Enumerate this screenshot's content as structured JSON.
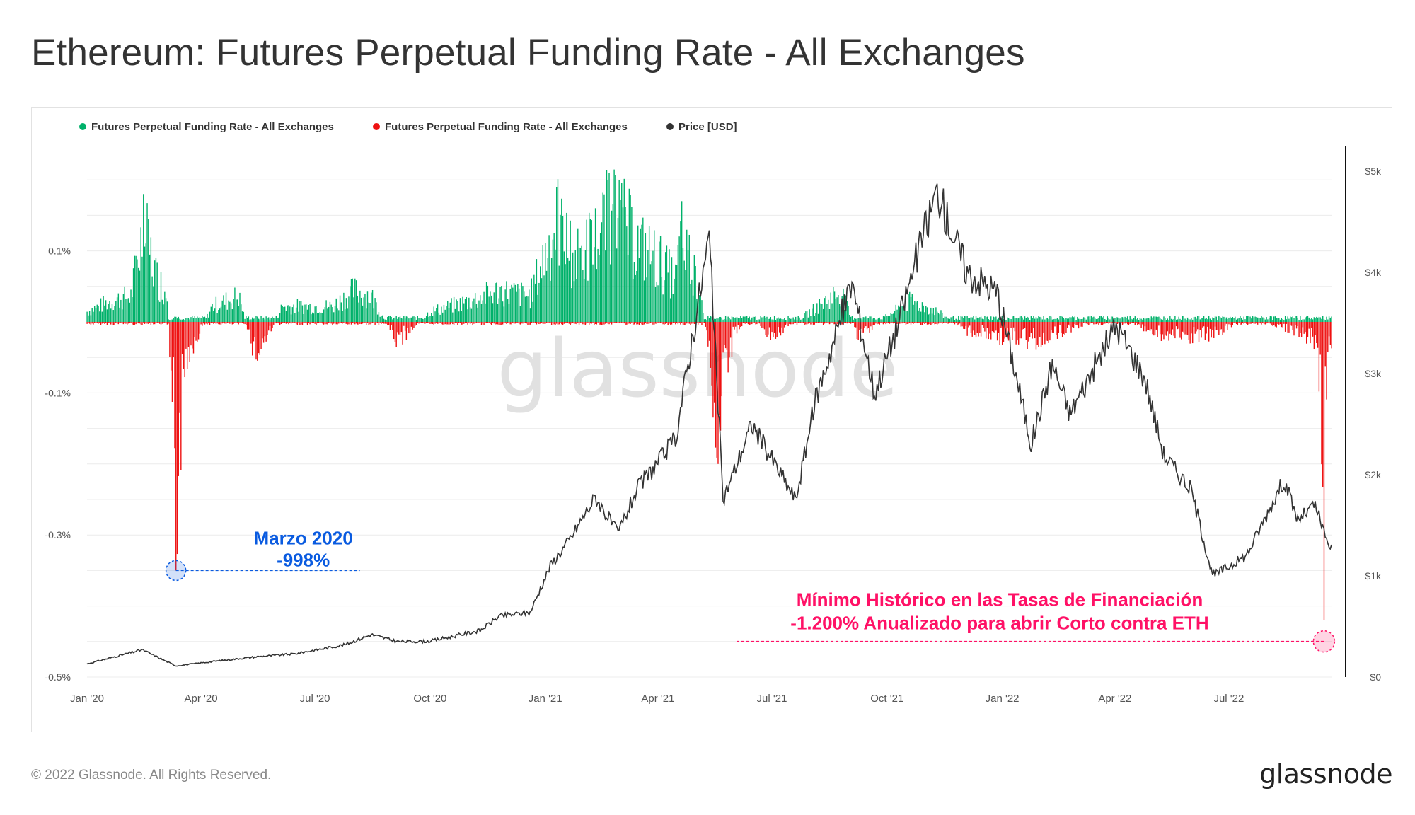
{
  "title": "Ethereum: Futures Perpetual Funding Rate - All Exchanges",
  "footer": {
    "copyright": "© 2022 Glassnode. All Rights Reserved.",
    "logo_text": "glassnode"
  },
  "watermark": "glassnode",
  "colors": {
    "positive": "#00b16a",
    "negative": "#ee1111",
    "price": "#333333",
    "blue_annotation": "#0a5be0",
    "pink_annotation": "#ff1166",
    "grid": "#ececec"
  },
  "chart_data": {
    "type": "bar+line",
    "x_ticks": [
      "Jan '20",
      "Apr '20",
      "Jul '20",
      "Oct '20",
      "Jan '21",
      "Apr '21",
      "Jul '21",
      "Oct '21",
      "Jan '22",
      "Apr '22",
      "Jul '22"
    ],
    "x_tick_dates": [
      "2020-01-01",
      "2020-04-01",
      "2020-07-01",
      "2020-10-01",
      "2021-01-01",
      "2021-04-01",
      "2021-07-01",
      "2021-10-01",
      "2022-01-01",
      "2022-04-01",
      "2022-07-01"
    ],
    "x_range": [
      "2020-01-01",
      "2022-09-21"
    ],
    "left_axis": {
      "ticks": [
        "0.1%",
        "-0.1%",
        "-0.3%",
        "-0.5%"
      ],
      "tick_values": [
        0.1,
        -0.1,
        -0.3,
        -0.5
      ],
      "range": [
        -0.5,
        0.25
      ],
      "unit": "%"
    },
    "right_axis": {
      "ticks": [
        "$5k",
        "$4k",
        "$3k",
        "$2k",
        "$1k",
        "$0"
      ],
      "tick_values": [
        5000,
        4000,
        3000,
        2000,
        1000,
        0
      ],
      "range": [
        0,
        5000
      ]
    },
    "legend": [
      {
        "label": "Futures Perpetual Funding Rate - All Exchanges",
        "color": "#00b16a"
      },
      {
        "label": "Futures Perpetual Funding Rate - All Exchanges",
        "color": "#ee1111"
      },
      {
        "label": "Price [USD]",
        "color": "#333333"
      }
    ],
    "legend_position": "top-left",
    "series": [
      {
        "name": "Futures Perpetual Funding Rate - All Exchanges",
        "axis": "left",
        "style": "bars green above zero / red below zero",
        "points": [
          [
            "2020-01-01",
            0.02
          ],
          [
            "2020-01-20",
            0.04
          ],
          [
            "2020-02-05",
            0.05
          ],
          [
            "2020-02-15",
            0.18
          ],
          [
            "2020-02-25",
            0.09
          ],
          [
            "2020-03-05",
            0.05
          ],
          [
            "2020-03-12",
            -0.35
          ],
          [
            "2020-03-20",
            -0.07
          ],
          [
            "2020-04-10",
            0.03
          ],
          [
            "2020-05-01",
            0.05
          ],
          [
            "2020-05-15",
            -0.07
          ],
          [
            "2020-06-05",
            0.03
          ],
          [
            "2020-07-15",
            0.03
          ],
          [
            "2020-08-01",
            0.06
          ],
          [
            "2020-08-15",
            0.05
          ],
          [
            "2020-09-05",
            -0.04
          ],
          [
            "2020-10-01",
            0.02
          ],
          [
            "2020-11-01",
            0.04
          ],
          [
            "2020-11-25",
            0.06
          ],
          [
            "2020-12-20",
            0.05
          ],
          [
            "2021-01-10",
            0.19
          ],
          [
            "2021-01-25",
            0.12
          ],
          [
            "2021-02-10",
            0.16
          ],
          [
            "2021-02-20",
            0.2
          ],
          [
            "2021-03-01",
            0.2
          ],
          [
            "2021-03-15",
            0.15
          ],
          [
            "2021-04-01",
            0.12
          ],
          [
            "2021-04-15",
            0.08
          ],
          [
            "2021-04-20",
            0.17
          ],
          [
            "2021-05-05",
            0.06
          ],
          [
            "2021-05-19",
            -0.2
          ],
          [
            "2021-06-01",
            -0.02
          ],
          [
            "2021-06-15",
            0.01
          ],
          [
            "2021-07-01",
            -0.03
          ],
          [
            "2021-08-01",
            0.02
          ],
          [
            "2021-08-25",
            0.06
          ],
          [
            "2021-09-08",
            -0.03
          ],
          [
            "2021-09-30",
            0.01
          ],
          [
            "2021-10-20",
            0.04
          ],
          [
            "2021-11-10",
            0.02
          ],
          [
            "2021-12-05",
            -0.02
          ],
          [
            "2021-12-30",
            -0.03
          ],
          [
            "2022-01-25",
            -0.04
          ],
          [
            "2022-03-01",
            -0.01
          ],
          [
            "2022-04-01",
            0.01
          ],
          [
            "2022-05-12",
            -0.03
          ],
          [
            "2022-06-18",
            -0.03
          ],
          [
            "2022-07-15",
            0.01
          ],
          [
            "2022-08-25",
            -0.02
          ],
          [
            "2022-09-10",
            -0.04
          ],
          [
            "2022-09-15",
            -0.42
          ],
          [
            "2022-09-18",
            -0.05
          ]
        ]
      },
      {
        "name": "Price [USD]",
        "axis": "right",
        "style": "line",
        "points": [
          [
            "2020-01-01",
            130
          ],
          [
            "2020-02-14",
            270
          ],
          [
            "2020-03-12",
            110
          ],
          [
            "2020-04-15",
            160
          ],
          [
            "2020-05-15",
            200
          ],
          [
            "2020-06-15",
            230
          ],
          [
            "2020-07-25",
            320
          ],
          [
            "2020-08-15",
            420
          ],
          [
            "2020-09-05",
            350
          ],
          [
            "2020-10-01",
            355
          ],
          [
            "2020-11-10",
            460
          ],
          [
            "2020-11-25",
            600
          ],
          [
            "2020-12-20",
            640
          ],
          [
            "2021-01-05",
            1100
          ],
          [
            "2021-01-20",
            1350
          ],
          [
            "2021-02-10",
            1780
          ],
          [
            "2021-02-28",
            1420
          ],
          [
            "2021-03-15",
            1850
          ],
          [
            "2021-04-15",
            2350
          ],
          [
            "2021-05-12",
            4350
          ],
          [
            "2021-05-23",
            1750
          ],
          [
            "2021-06-15",
            2500
          ],
          [
            "2021-07-20",
            1750
          ],
          [
            "2021-08-05",
            2750
          ],
          [
            "2021-09-03",
            3900
          ],
          [
            "2021-09-21",
            2800
          ],
          [
            "2021-10-10",
            3500
          ],
          [
            "2021-10-27",
            4250
          ],
          [
            "2021-11-10",
            4800
          ],
          [
            "2021-12-04",
            4000
          ],
          [
            "2021-12-28",
            3800
          ],
          [
            "2022-01-10",
            3100
          ],
          [
            "2022-01-24",
            2300
          ],
          [
            "2022-02-10",
            3100
          ],
          [
            "2022-02-24",
            2600
          ],
          [
            "2022-04-02",
            3480
          ],
          [
            "2022-04-25",
            2950
          ],
          [
            "2022-05-10",
            2200
          ],
          [
            "2022-06-01",
            1850
          ],
          [
            "2022-06-18",
            1000
          ],
          [
            "2022-07-15",
            1200
          ],
          [
            "2022-08-14",
            1950
          ],
          [
            "2022-08-25",
            1550
          ],
          [
            "2022-09-08",
            1700
          ],
          [
            "2022-09-18",
            1300
          ]
        ]
      }
    ],
    "annotations": [
      {
        "title": "Marzo 2020",
        "value": "-998%",
        "date": "2020-03-12",
        "funding_value": -0.35,
        "color": "blue"
      },
      {
        "line1": "Mínimo Histórico en las Tasas de Financiación",
        "line2": "-1.200% Anualizado para abrir Corto contra ETH",
        "date": "2022-09-15",
        "funding_value": -0.42,
        "color": "pink"
      }
    ]
  }
}
